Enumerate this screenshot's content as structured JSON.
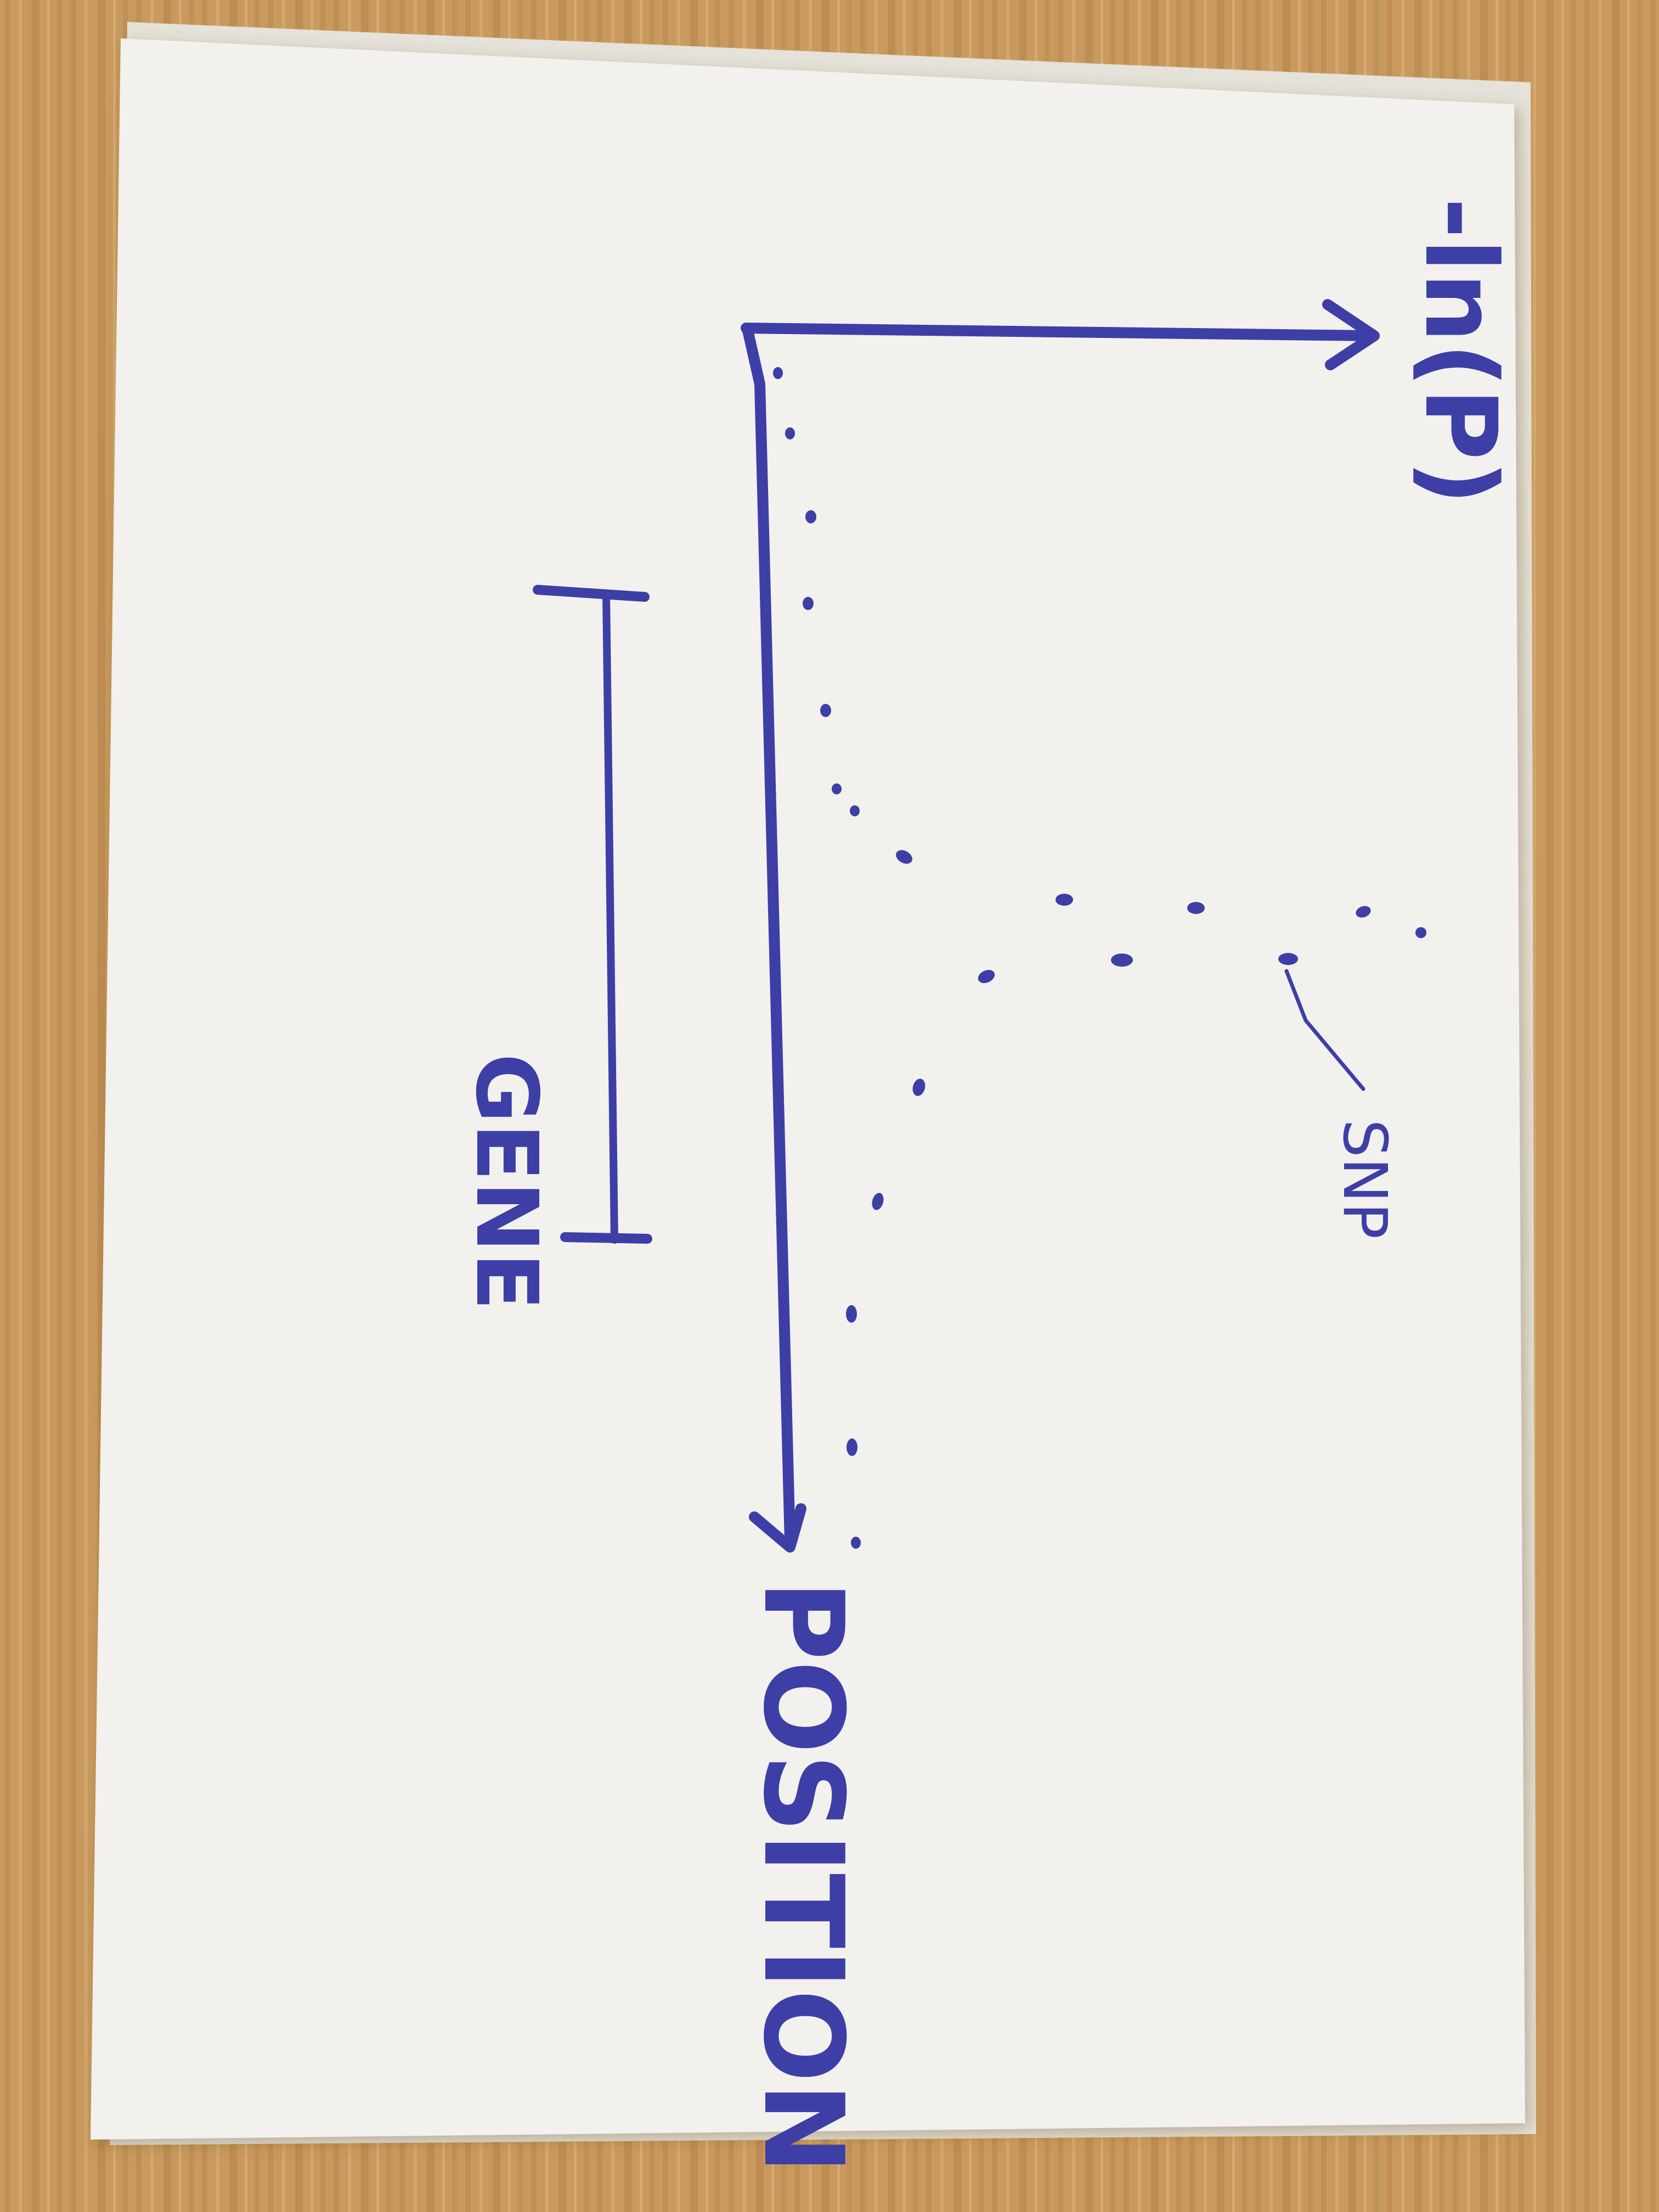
{
  "figure": {
    "x_axis_label": "-ln(P)",
    "y_axis_label": "POSITION",
    "gene_label": "GENE",
    "annotation_label": "SNP",
    "ink_color": "#3d3fa6",
    "paper_color": "#f2f1ed",
    "background_color": "#c99a5f",
    "background_dark_color": "#b9854a",
    "paper_edge_color": "#e5e2d9"
  }
}
